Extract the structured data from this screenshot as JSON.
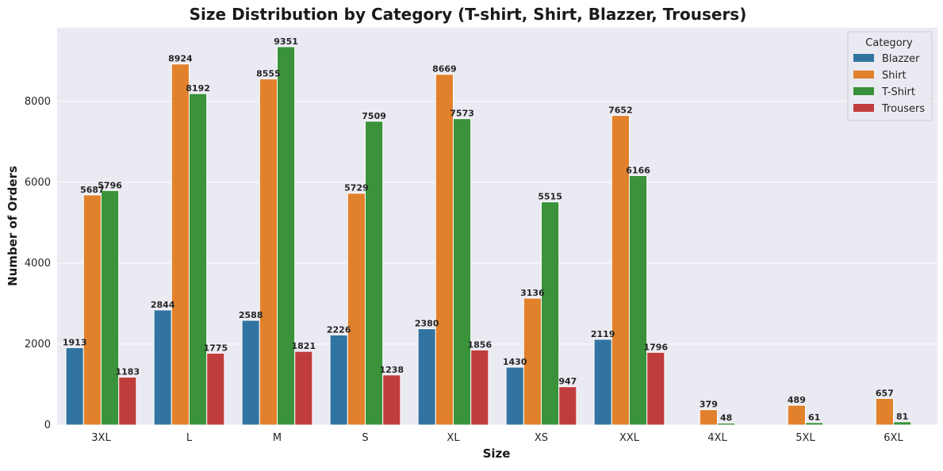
{
  "chart_data": {
    "type": "bar",
    "title": "Size Distribution by Category (T-shirt, Shirt, Blazzer, Trousers)",
    "xlabel": "Size",
    "ylabel": "Number of Orders",
    "ylim": [
      0,
      9820
    ],
    "yticks": [
      0,
      2000,
      4000,
      6000,
      8000
    ],
    "grid": true,
    "legend": {
      "title": "Category",
      "placement": "top-right"
    },
    "categories": [
      "3XL",
      "L",
      "M",
      "S",
      "XL",
      "XS",
      "XXL",
      "4XL",
      "5XL",
      "6XL"
    ],
    "series": [
      {
        "name": "Blazzer",
        "color": "#3274a1",
        "values": [
          1913,
          2844,
          2588,
          2226,
          2380,
          1430,
          2119,
          null,
          null,
          null
        ]
      },
      {
        "name": "Shirt",
        "color": "#e1812c",
        "values": [
          5687,
          8924,
          8555,
          5729,
          8669,
          3136,
          7652,
          379,
          489,
          657
        ]
      },
      {
        "name": "T-Shirt",
        "color": "#3a923a",
        "values": [
          5796,
          8192,
          9351,
          7509,
          7573,
          5515,
          6166,
          48,
          61,
          81
        ]
      },
      {
        "name": "Trousers",
        "color": "#c03d3e",
        "values": [
          1183,
          1775,
          1821,
          1238,
          1856,
          947,
          1796,
          null,
          null,
          null
        ]
      }
    ],
    "colors": {
      "plot_background": "#eaeaf2",
      "grid": "#ffffff"
    }
  }
}
